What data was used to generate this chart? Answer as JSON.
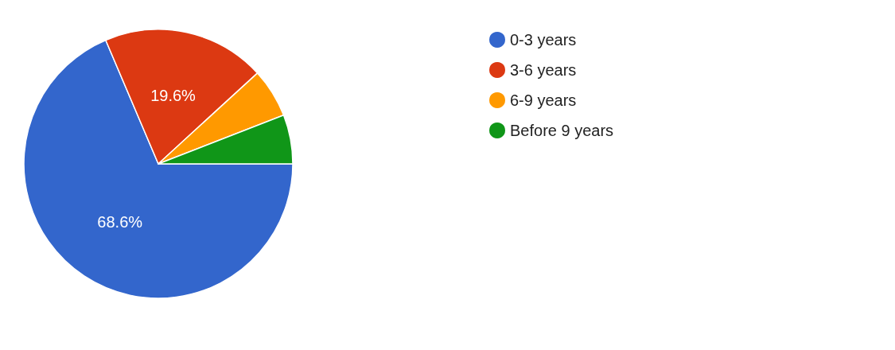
{
  "chart_data": {
    "type": "pie",
    "categories": [
      "0-3 years",
      "3-6 years",
      "6-9 years",
      "Before 9 years"
    ],
    "values": [
      68.6,
      19.6,
      5.9,
      5.9
    ],
    "value_labels": [
      "68.6%",
      "19.6%",
      null,
      null
    ],
    "colors": [
      "#3366cc",
      "#dc3912",
      "#ff9900",
      "#109618"
    ],
    "legend": "right"
  }
}
